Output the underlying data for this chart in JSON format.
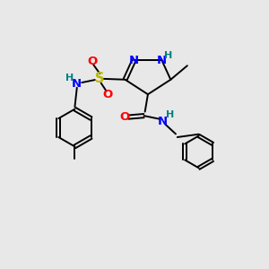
{
  "bg_color": "#e8e8e8",
  "atom_colors": {
    "C": "#000000",
    "N": "#0000ff",
    "O": "#ff0000",
    "S": "#b8b800",
    "H": "#008080"
  },
  "bond_color": "#000000",
  "lw": 1.4,
  "font_size": 9.5
}
